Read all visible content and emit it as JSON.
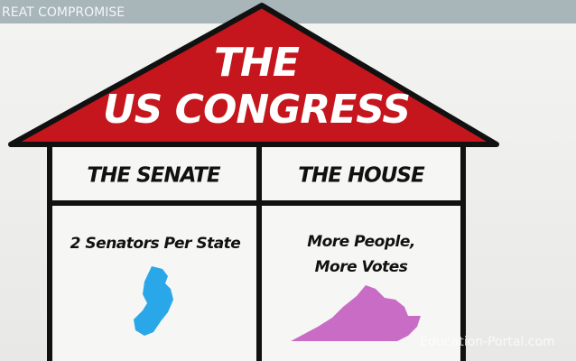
{
  "banner": "REAT COMPROMISE",
  "roof": {
    "lines": [
      "THE",
      "US CONGRESS"
    ]
  },
  "rooms": [
    {
      "title": "THE SENATE",
      "text": [
        "2 Senators Per State"
      ]
    },
    {
      "title": "THE HOUSE",
      "text": [
        "More People,",
        "More Votes"
      ]
    }
  ],
  "watermark": "Education-Portal.com"
}
